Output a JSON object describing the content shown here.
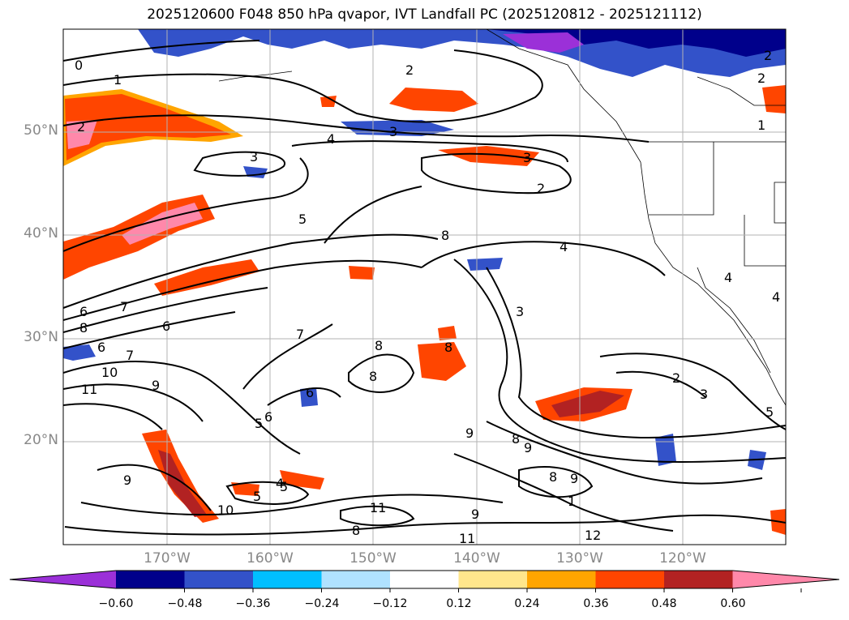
{
  "title": "2025120600 F048 850 hPa qvapor, IVT Landfall PC (2025120812 - 2025121112)",
  "lat_labels": [
    "50°N",
    "40°N",
    "30°N",
    "20°N"
  ],
  "lon_labels": [
    "170°W",
    "160°W",
    "150°W",
    "140°W",
    "130°W",
    "120°W"
  ],
  "colorbar": {
    "colors": [
      "#9b30d8",
      "#00008b",
      "#3352c9",
      "#00bfff",
      "#b0e2ff",
      "#ffffff",
      "#ffe68c",
      "#ffa500",
      "#ff4500",
      "#b22222",
      "#ff88aa"
    ],
    "tick_labels": [
      "−0.60",
      "−0.48",
      "−0.36",
      "−0.24",
      "−0.12",
      "0.12",
      "0.24",
      "0.36",
      "0.48",
      "0.60"
    ]
  },
  "contour_labels": [
    "0",
    "1",
    "2",
    "2",
    "3",
    "4",
    "3",
    "3",
    "2",
    "5",
    "8",
    "4",
    "3",
    "6",
    "7",
    "8",
    "6",
    "7",
    "6",
    "10",
    "11",
    "9",
    "7",
    "8",
    "8",
    "8",
    "6",
    "5",
    "6",
    "5",
    "4",
    "5",
    "9",
    "8",
    "9",
    "9",
    "8",
    "9",
    "11",
    "9",
    "8",
    "10",
    "12",
    "11",
    "2",
    "3",
    "5",
    "4",
    "4",
    "1",
    "2",
    "1",
    "2"
  ],
  "map_extent": {
    "lon": [
      -180,
      -110
    ],
    "lat": [
      10,
      60
    ]
  }
}
